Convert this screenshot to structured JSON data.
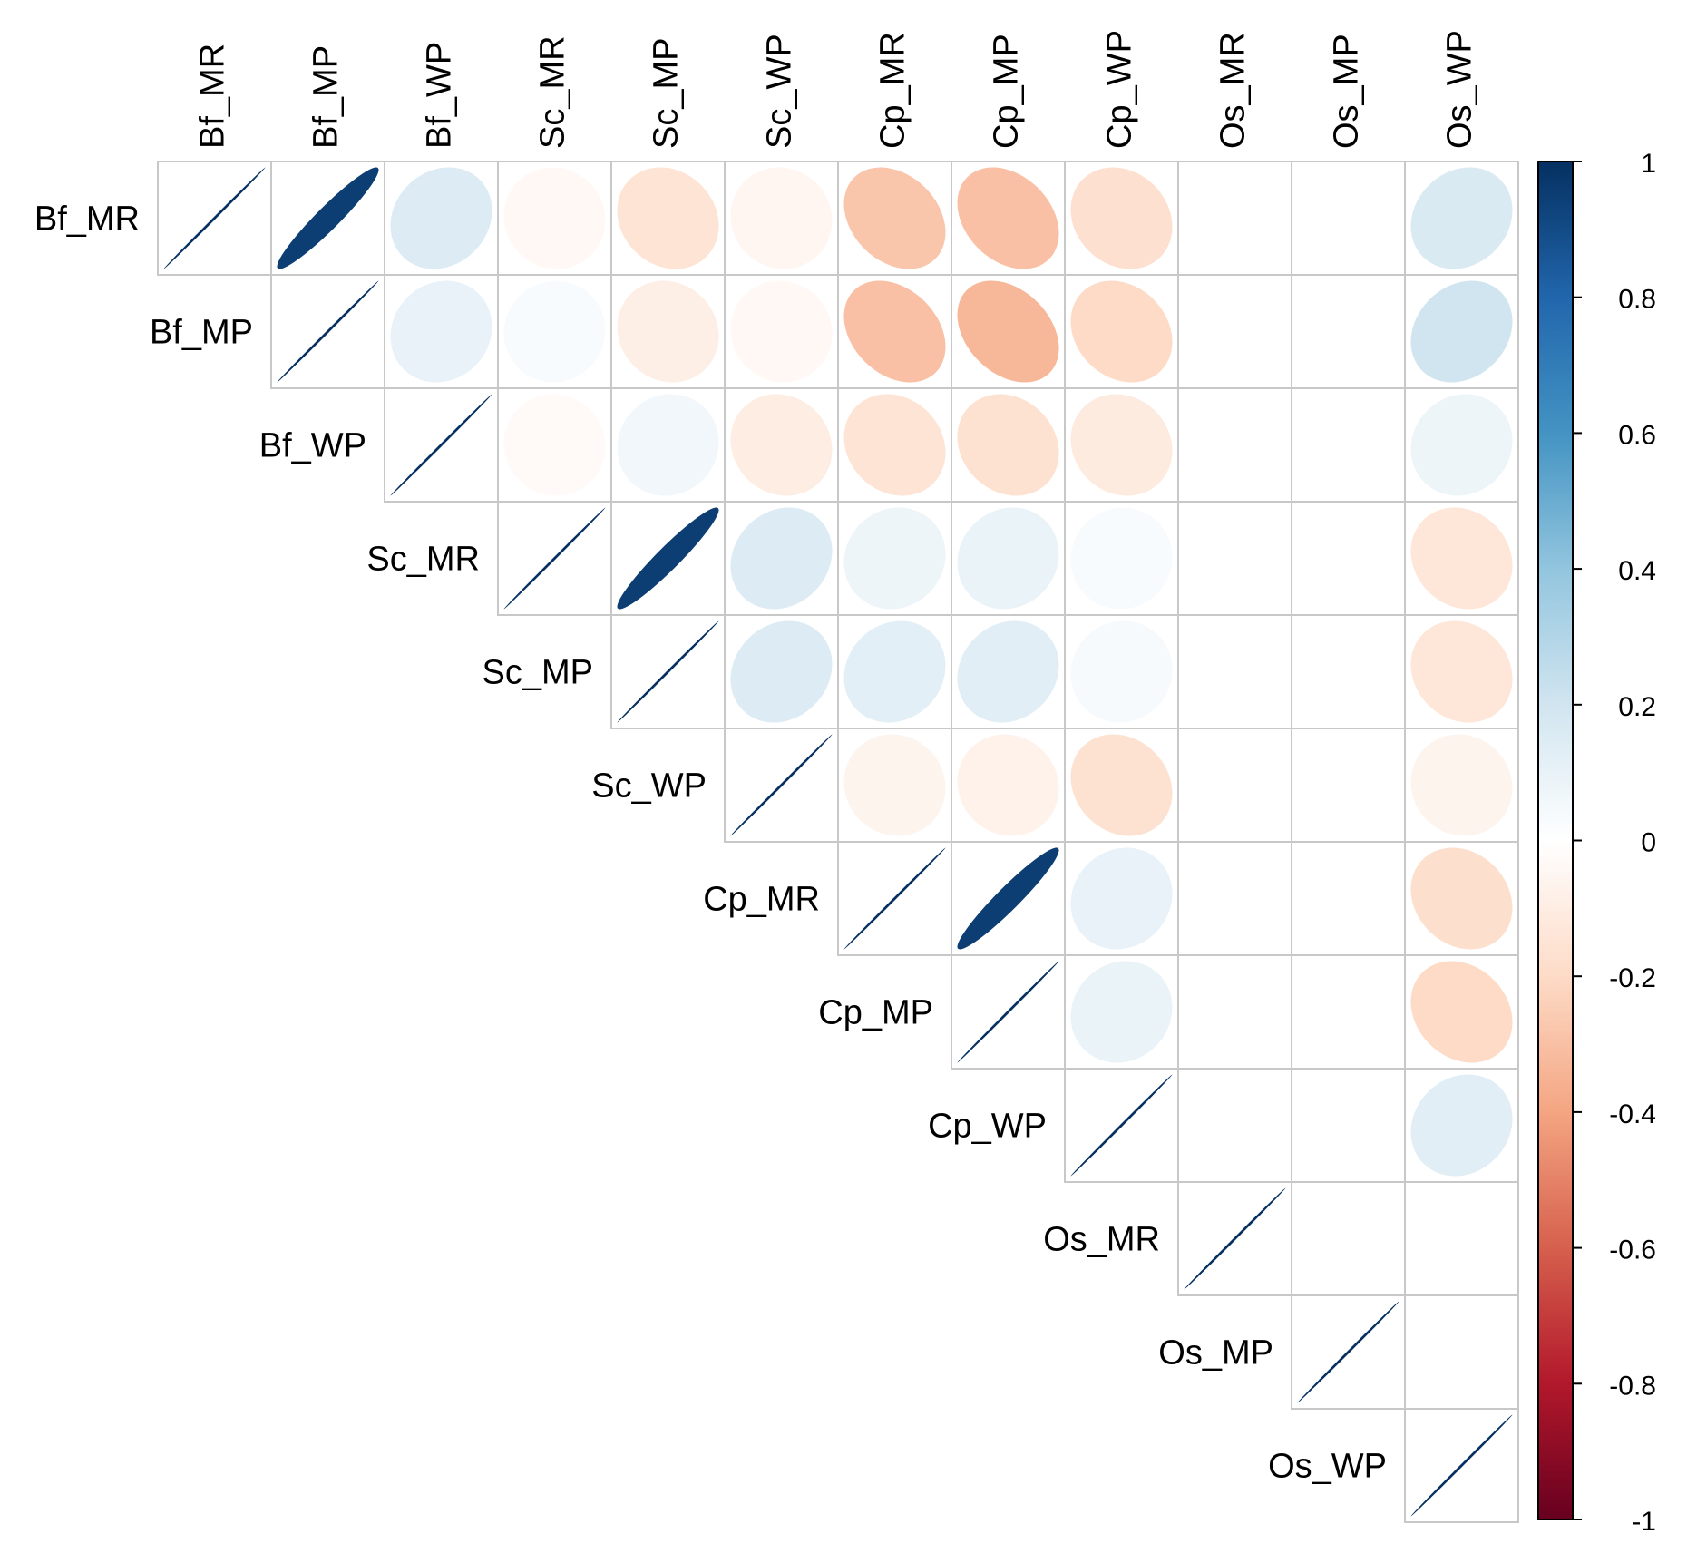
{
  "chart_data": {
    "type": "heatmap",
    "style": "corrplot-ellipse-upper",
    "variables": [
      "Bf_MR",
      "Bf_MP",
      "Bf_WP",
      "Sc_MR",
      "Sc_MP",
      "Sc_WP",
      "Cp_MR",
      "Cp_MP",
      "Cp_WP",
      "Os_MR",
      "Os_MP",
      "Os_WP"
    ],
    "matrix": [
      [
        1.0,
        0.95,
        0.15,
        -0.04,
        -0.15,
        -0.05,
        -0.28,
        -0.3,
        -0.17,
        0.0,
        0.0,
        0.16
      ],
      [
        0.95,
        1.0,
        0.1,
        0.03,
        -0.09,
        -0.04,
        -0.3,
        -0.33,
        -0.2,
        0.0,
        0.0,
        0.2
      ],
      [
        0.15,
        0.1,
        1.0,
        -0.03,
        0.06,
        -0.1,
        -0.15,
        -0.16,
        -0.11,
        0.0,
        0.0,
        0.08
      ],
      [
        -0.04,
        0.03,
        -0.03,
        1.0,
        0.95,
        0.15,
        0.08,
        0.09,
        0.03,
        0.0,
        0.0,
        -0.14
      ],
      [
        -0.15,
        -0.09,
        0.06,
        0.95,
        1.0,
        0.15,
        0.12,
        0.13,
        0.04,
        0.0,
        0.0,
        -0.14
      ],
      [
        -0.05,
        -0.04,
        -0.1,
        0.15,
        0.15,
        1.0,
        -0.06,
        -0.07,
        -0.16,
        0.0,
        0.0,
        -0.06
      ],
      [
        -0.28,
        -0.3,
        -0.15,
        0.08,
        0.12,
        -0.06,
        1.0,
        0.95,
        0.1,
        0.0,
        0.0,
        -0.18
      ],
      [
        -0.3,
        -0.33,
        -0.16,
        0.09,
        0.13,
        -0.07,
        0.95,
        1.0,
        0.09,
        0.0,
        0.0,
        -0.2
      ],
      [
        -0.17,
        -0.2,
        -0.11,
        0.03,
        0.04,
        -0.16,
        0.1,
        0.09,
        1.0,
        0.0,
        0.0,
        0.13
      ],
      [
        0.0,
        0.0,
        0.0,
        0.0,
        0.0,
        0.0,
        0.0,
        0.0,
        0.0,
        1.0,
        0.0,
        0.0
      ],
      [
        0.0,
        0.0,
        0.0,
        0.0,
        0.0,
        0.0,
        0.0,
        0.0,
        0.0,
        0.0,
        1.0,
        0.0
      ],
      [
        0.16,
        0.2,
        0.08,
        -0.14,
        -0.14,
        -0.06,
        -0.18,
        -0.2,
        0.13,
        0.0,
        0.0,
        1.0
      ]
    ],
    "colorbar": {
      "range": [
        -1,
        1
      ],
      "ticks": [
        "1",
        "0.8",
        "0.6",
        "0.4",
        "0.2",
        "0",
        "-0.2",
        "-0.4",
        "-0.6",
        "-0.8",
        "-1"
      ],
      "colors": {
        "negative_end": "#67001F",
        "neg_1": "#B2182B",
        "neg_2": "#D6604D",
        "neg_3": "#F4A582",
        "neg_4": "#FDDBC7",
        "zero": "#FFFFFF",
        "pos_4": "#D1E5F0",
        "pos_3": "#92C5DE",
        "pos_2": "#4393C3",
        "pos_1": "#2166AC",
        "positive_end": "#053061"
      }
    },
    "grid": true,
    "legend": "right"
  }
}
